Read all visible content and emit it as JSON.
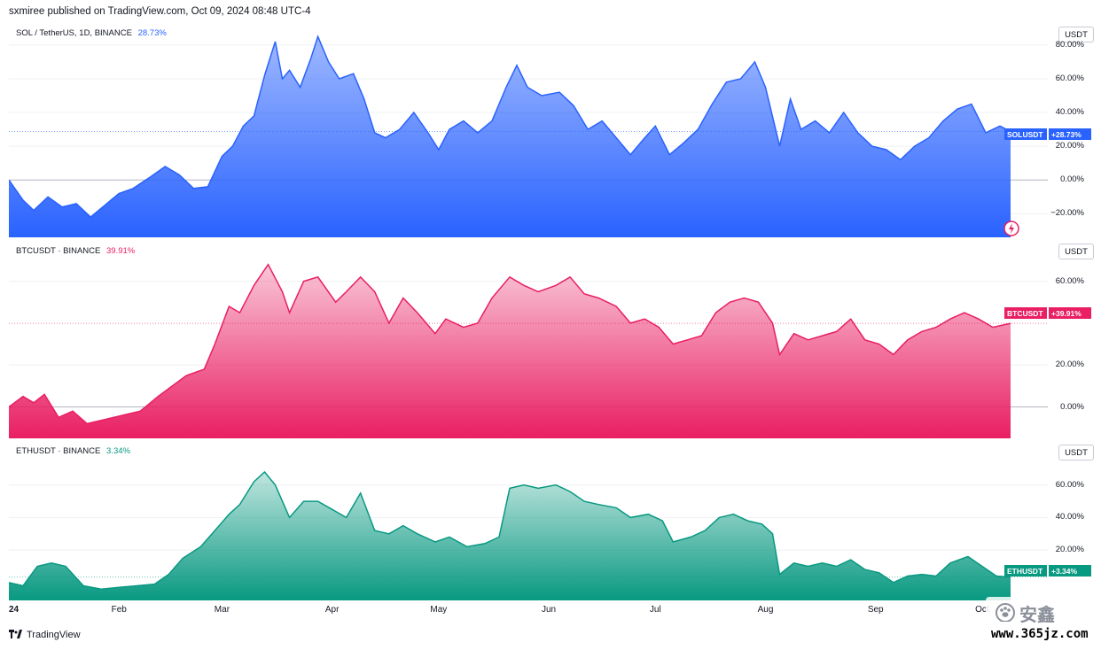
{
  "header": {
    "text": "sxmiree published on TradingView.com, Oct 09, 2024 08:48 UTC-4"
  },
  "footer": {
    "brand": "TradingView"
  },
  "watermark": {
    "name": "安鑫",
    "site": "www.365jz.com"
  },
  "x_axis": {
    "labels": [
      "24",
      "Feb",
      "Mar",
      "Apr",
      "May",
      "Jun",
      "Jul",
      "Aug",
      "Sep",
      "Oct"
    ]
  },
  "panes": [
    {
      "symbol": "SOL / TetherUS, 1D, BINANCE",
      "change": "28.73%",
      "badge_symbol": "SOLUSDT",
      "badge_value": "+28.73%",
      "currency": "USDT",
      "ticks": [
        "80.00%",
        "60.00%",
        "40.00%",
        "20.00%",
        "0.00%",
        "−20.00%"
      ],
      "color": "#2962ff"
    },
    {
      "symbol": "BTCUSDT · BINANCE",
      "change": "39.91%",
      "badge_symbol": "BTCUSDT",
      "badge_value": "+39.91%",
      "currency": "USDT",
      "ticks": [
        "60.00%",
        "20.00%",
        "0.00%"
      ],
      "color": "#e91e63"
    },
    {
      "symbol": "ETHUSDT · BINANCE",
      "change": "3.34%",
      "badge_symbol": "ETHUSDT",
      "badge_value": "+3.34%",
      "currency": "USDT",
      "ticks": [
        "60.00%",
        "40.00%",
        "20.00%"
      ],
      "color": "#089981"
    }
  ],
  "chart_data": [
    {
      "type": "area",
      "title": "SOL / TetherUS, 1D, BINANCE",
      "ylabel": "",
      "ylim": [
        -34,
        92
      ],
      "x_start": "2024-01-01",
      "x_end": "2024-10-09",
      "series": [
        {
          "name": "SOLUSDT",
          "points": [
            [
              "2024-01-01",
              0
            ],
            [
              "2024-01-05",
              -12
            ],
            [
              "2024-01-08",
              -18
            ],
            [
              "2024-01-12",
              -10
            ],
            [
              "2024-01-16",
              -16
            ],
            [
              "2024-01-20",
              -14
            ],
            [
              "2024-01-24",
              -22
            ],
            [
              "2024-01-28",
              -15
            ],
            [
              "2024-02-01",
              -8
            ],
            [
              "2024-02-05",
              -5
            ],
            [
              "2024-02-10",
              2
            ],
            [
              "2024-02-14",
              8
            ],
            [
              "2024-02-18",
              3
            ],
            [
              "2024-02-22",
              -5
            ],
            [
              "2024-02-26",
              -4
            ],
            [
              "2024-03-01",
              14
            ],
            [
              "2024-03-04",
              20
            ],
            [
              "2024-03-07",
              32
            ],
            [
              "2024-03-10",
              38
            ],
            [
              "2024-03-13",
              62
            ],
            [
              "2024-03-16",
              82
            ],
            [
              "2024-03-18",
              60
            ],
            [
              "2024-03-20",
              65
            ],
            [
              "2024-03-23",
              55
            ],
            [
              "2024-03-26",
              72
            ],
            [
              "2024-03-28",
              85
            ],
            [
              "2024-03-31",
              70
            ],
            [
              "2024-04-03",
              60
            ],
            [
              "2024-04-07",
              63
            ],
            [
              "2024-04-10",
              48
            ],
            [
              "2024-04-13",
              28
            ],
            [
              "2024-04-16",
              25
            ],
            [
              "2024-04-20",
              30
            ],
            [
              "2024-04-24",
              40
            ],
            [
              "2024-04-28",
              28
            ],
            [
              "2024-05-01",
              18
            ],
            [
              "2024-05-04",
              30
            ],
            [
              "2024-05-08",
              35
            ],
            [
              "2024-05-12",
              28
            ],
            [
              "2024-05-16",
              35
            ],
            [
              "2024-05-20",
              55
            ],
            [
              "2024-05-23",
              68
            ],
            [
              "2024-05-26",
              55
            ],
            [
              "2024-05-30",
              50
            ],
            [
              "2024-06-04",
              52
            ],
            [
              "2024-06-08",
              44
            ],
            [
              "2024-06-12",
              30
            ],
            [
              "2024-06-16",
              35
            ],
            [
              "2024-06-20",
              25
            ],
            [
              "2024-06-24",
              15
            ],
            [
              "2024-06-28",
              25
            ],
            [
              "2024-07-01",
              32
            ],
            [
              "2024-07-05",
              15
            ],
            [
              "2024-07-09",
              22
            ],
            [
              "2024-07-13",
              30
            ],
            [
              "2024-07-17",
              45
            ],
            [
              "2024-07-21",
              58
            ],
            [
              "2024-07-25",
              60
            ],
            [
              "2024-07-29",
              70
            ],
            [
              "2024-08-01",
              55
            ],
            [
              "2024-08-05",
              20
            ],
            [
              "2024-08-08",
              48
            ],
            [
              "2024-08-11",
              30
            ],
            [
              "2024-08-15",
              35
            ],
            [
              "2024-08-19",
              28
            ],
            [
              "2024-08-23",
              40
            ],
            [
              "2024-08-27",
              28
            ],
            [
              "2024-08-31",
              20
            ],
            [
              "2024-09-04",
              18
            ],
            [
              "2024-09-08",
              12
            ],
            [
              "2024-09-12",
              20
            ],
            [
              "2024-09-16",
              25
            ],
            [
              "2024-09-20",
              35
            ],
            [
              "2024-09-24",
              42
            ],
            [
              "2024-09-28",
              45
            ],
            [
              "2024-10-02",
              28
            ],
            [
              "2024-10-06",
              32
            ],
            [
              "2024-10-09",
              28.73
            ]
          ]
        }
      ]
    },
    {
      "type": "area",
      "title": "BTCUSDT · BINANCE",
      "ylabel": "",
      "ylim": [
        -15,
        78
      ],
      "x_start": "2024-01-01",
      "x_end": "2024-10-09",
      "series": [
        {
          "name": "BTCUSDT",
          "points": [
            [
              "2024-01-01",
              0
            ],
            [
              "2024-01-05",
              5
            ],
            [
              "2024-01-08",
              2
            ],
            [
              "2024-01-11",
              6
            ],
            [
              "2024-01-15",
              -5
            ],
            [
              "2024-01-19",
              -2
            ],
            [
              "2024-01-23",
              -8
            ],
            [
              "2024-01-28",
              -6
            ],
            [
              "2024-02-02",
              -4
            ],
            [
              "2024-02-07",
              -2
            ],
            [
              "2024-02-12",
              5
            ],
            [
              "2024-02-16",
              10
            ],
            [
              "2024-02-20",
              15
            ],
            [
              "2024-02-25",
              18
            ],
            [
              "2024-02-28",
              30
            ],
            [
              "2024-03-03",
              48
            ],
            [
              "2024-03-06",
              45
            ],
            [
              "2024-03-10",
              58
            ],
            [
              "2024-03-14",
              68
            ],
            [
              "2024-03-18",
              55
            ],
            [
              "2024-03-20",
              45
            ],
            [
              "2024-03-24",
              60
            ],
            [
              "2024-03-28",
              62
            ],
            [
              "2024-04-02",
              50
            ],
            [
              "2024-04-05",
              55
            ],
            [
              "2024-04-09",
              62
            ],
            [
              "2024-04-13",
              55
            ],
            [
              "2024-04-17",
              40
            ],
            [
              "2024-04-21",
              52
            ],
            [
              "2024-04-25",
              45
            ],
            [
              "2024-04-30",
              35
            ],
            [
              "2024-05-03",
              42
            ],
            [
              "2024-05-08",
              38
            ],
            [
              "2024-05-12",
              40
            ],
            [
              "2024-05-16",
              52
            ],
            [
              "2024-05-21",
              62
            ],
            [
              "2024-05-25",
              58
            ],
            [
              "2024-05-29",
              55
            ],
            [
              "2024-06-03",
              58
            ],
            [
              "2024-06-07",
              62
            ],
            [
              "2024-06-11",
              54
            ],
            [
              "2024-06-15",
              52
            ],
            [
              "2024-06-20",
              48
            ],
            [
              "2024-06-24",
              40
            ],
            [
              "2024-06-28",
              42
            ],
            [
              "2024-07-02",
              38
            ],
            [
              "2024-07-06",
              30
            ],
            [
              "2024-07-10",
              32
            ],
            [
              "2024-07-14",
              34
            ],
            [
              "2024-07-18",
              45
            ],
            [
              "2024-07-22",
              50
            ],
            [
              "2024-07-26",
              52
            ],
            [
              "2024-07-30",
              50
            ],
            [
              "2024-08-03",
              40
            ],
            [
              "2024-08-05",
              25
            ],
            [
              "2024-08-09",
              35
            ],
            [
              "2024-08-13",
              32
            ],
            [
              "2024-08-17",
              34
            ],
            [
              "2024-08-21",
              36
            ],
            [
              "2024-08-25",
              42
            ],
            [
              "2024-08-29",
              32
            ],
            [
              "2024-09-02",
              30
            ],
            [
              "2024-09-06",
              25
            ],
            [
              "2024-09-10",
              32
            ],
            [
              "2024-09-14",
              36
            ],
            [
              "2024-09-18",
              38
            ],
            [
              "2024-09-22",
              42
            ],
            [
              "2024-09-26",
              45
            ],
            [
              "2024-09-30",
              42
            ],
            [
              "2024-10-04",
              38
            ],
            [
              "2024-10-09",
              39.91
            ]
          ]
        }
      ]
    },
    {
      "type": "area",
      "title": "ETHUSDT · BINANCE",
      "ylabel": "",
      "ylim": [
        -11,
        86
      ],
      "x_start": "2024-01-01",
      "x_end": "2024-10-09",
      "series": [
        {
          "name": "ETHUSDT",
          "points": [
            [
              "2024-01-01",
              0
            ],
            [
              "2024-01-05",
              -2
            ],
            [
              "2024-01-09",
              10
            ],
            [
              "2024-01-13",
              12
            ],
            [
              "2024-01-17",
              10
            ],
            [
              "2024-01-22",
              -2
            ],
            [
              "2024-01-27",
              -4
            ],
            [
              "2024-02-01",
              -3
            ],
            [
              "2024-02-06",
              -2
            ],
            [
              "2024-02-11",
              -1
            ],
            [
              "2024-02-15",
              5
            ],
            [
              "2024-02-19",
              15
            ],
            [
              "2024-02-24",
              22
            ],
            [
              "2024-02-28",
              32
            ],
            [
              "2024-03-03",
              42
            ],
            [
              "2024-03-06",
              48
            ],
            [
              "2024-03-10",
              62
            ],
            [
              "2024-03-13",
              68
            ],
            [
              "2024-03-16",
              60
            ],
            [
              "2024-03-20",
              40
            ],
            [
              "2024-03-24",
              50
            ],
            [
              "2024-03-28",
              50
            ],
            [
              "2024-04-01",
              45
            ],
            [
              "2024-04-05",
              40
            ],
            [
              "2024-04-09",
              55
            ],
            [
              "2024-04-13",
              32
            ],
            [
              "2024-04-17",
              30
            ],
            [
              "2024-04-21",
              35
            ],
            [
              "2024-04-25",
              30
            ],
            [
              "2024-04-30",
              25
            ],
            [
              "2024-05-04",
              28
            ],
            [
              "2024-05-09",
              22
            ],
            [
              "2024-05-14",
              24
            ],
            [
              "2024-05-18",
              28
            ],
            [
              "2024-05-21",
              58
            ],
            [
              "2024-05-25",
              60
            ],
            [
              "2024-05-29",
              58
            ],
            [
              "2024-06-03",
              60
            ],
            [
              "2024-06-07",
              56
            ],
            [
              "2024-06-11",
              50
            ],
            [
              "2024-06-15",
              48
            ],
            [
              "2024-06-20",
              46
            ],
            [
              "2024-06-24",
              40
            ],
            [
              "2024-06-29",
              42
            ],
            [
              "2024-07-03",
              38
            ],
            [
              "2024-07-06",
              25
            ],
            [
              "2024-07-11",
              28
            ],
            [
              "2024-07-15",
              32
            ],
            [
              "2024-07-19",
              40
            ],
            [
              "2024-07-23",
              42
            ],
            [
              "2024-07-27",
              38
            ],
            [
              "2024-07-31",
              36
            ],
            [
              "2024-08-03",
              30
            ],
            [
              "2024-08-05",
              5
            ],
            [
              "2024-08-09",
              12
            ],
            [
              "2024-08-13",
              10
            ],
            [
              "2024-08-17",
              12
            ],
            [
              "2024-08-21",
              10
            ],
            [
              "2024-08-25",
              14
            ],
            [
              "2024-08-29",
              8
            ],
            [
              "2024-09-02",
              6
            ],
            [
              "2024-09-06",
              0
            ],
            [
              "2024-09-10",
              4
            ],
            [
              "2024-09-14",
              5
            ],
            [
              "2024-09-18",
              4
            ],
            [
              "2024-09-22",
              12
            ],
            [
              "2024-09-27",
              16
            ],
            [
              "2024-10-01",
              10
            ],
            [
              "2024-10-05",
              4
            ],
            [
              "2024-10-09",
              3.34
            ]
          ]
        }
      ]
    }
  ]
}
